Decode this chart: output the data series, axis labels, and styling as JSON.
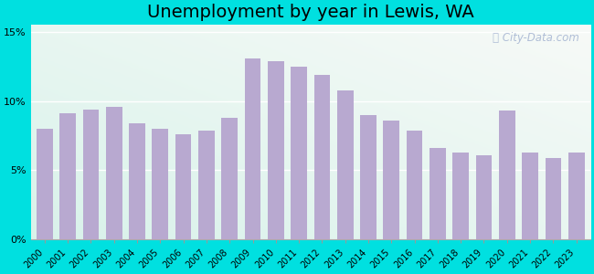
{
  "title": "Unemployment by year in Lewis, WA",
  "years": [
    2000,
    2001,
    2002,
    2003,
    2004,
    2005,
    2006,
    2007,
    2008,
    2009,
    2010,
    2011,
    2012,
    2013,
    2014,
    2015,
    2016,
    2017,
    2018,
    2019,
    2020,
    2021,
    2022,
    2023
  ],
  "values": [
    8.0,
    9.1,
    9.4,
    9.6,
    8.4,
    8.0,
    7.6,
    7.9,
    8.8,
    13.1,
    12.9,
    12.5,
    11.9,
    10.8,
    9.0,
    8.6,
    7.9,
    6.6,
    6.3,
    6.1,
    9.3,
    6.3,
    5.9,
    6.3
  ],
  "bar_color": "#b8a9d0",
  "bg_outer": "#00e0e0",
  "yticks": [
    0,
    5,
    10,
    15
  ],
  "ytick_labels": [
    "0%",
    "5%",
    "10%",
    "15%"
  ],
  "ylim": [
    0,
    15.5
  ],
  "title_fontsize": 14,
  "watermark": "City-Data.com"
}
